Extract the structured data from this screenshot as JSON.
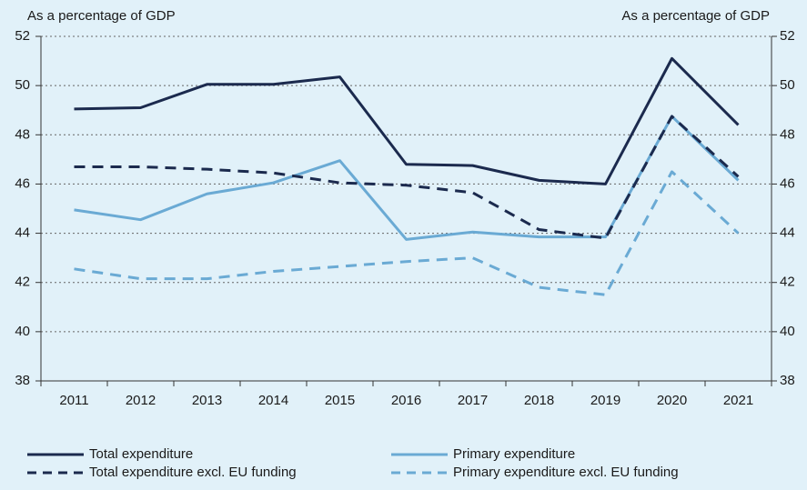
{
  "chart_data": {
    "type": "line",
    "y_label": "As a percentage of GDP",
    "y2_label": "As a percentage of GDP",
    "categories": [
      "2011",
      "2012",
      "2013",
      "2014",
      "2015",
      "2016",
      "2017",
      "2018",
      "2019",
      "2020",
      "2021"
    ],
    "series": [
      {
        "name": "Total expenditure",
        "color": "#1b2a4e",
        "dash": false,
        "values": [
          49.05,
          49.1,
          50.05,
          50.05,
          50.35,
          46.8,
          46.75,
          46.15,
          46.0,
          51.1,
          48.4
        ]
      },
      {
        "name": "Primary expenditure",
        "color": "#6aaad4",
        "dash": false,
        "values": [
          44.95,
          44.55,
          45.6,
          46.05,
          46.95,
          43.75,
          44.05,
          43.85,
          43.85,
          48.75,
          46.15
        ]
      },
      {
        "name": "Total expenditure excl. EU funding",
        "color": "#1b2a4e",
        "dash": true,
        "values": [
          46.7,
          46.7,
          46.6,
          46.45,
          46.05,
          45.95,
          45.65,
          44.15,
          43.8,
          48.75,
          46.3
        ]
      },
      {
        "name": "Primary expenditure excl. EU funding",
        "color": "#6aaad4",
        "dash": true,
        "values": [
          42.55,
          42.15,
          42.15,
          42.45,
          42.65,
          42.85,
          43.0,
          41.8,
          41.5,
          46.5,
          44.0
        ]
      }
    ],
    "ylim": [
      38,
      52
    ],
    "yticks": [
      38,
      40,
      42,
      44,
      46,
      48,
      50,
      52
    ],
    "y2lim": [
      38,
      52
    ],
    "y2ticks": [
      38,
      40,
      42,
      44,
      46,
      48,
      50,
      52
    ],
    "grid": true
  }
}
